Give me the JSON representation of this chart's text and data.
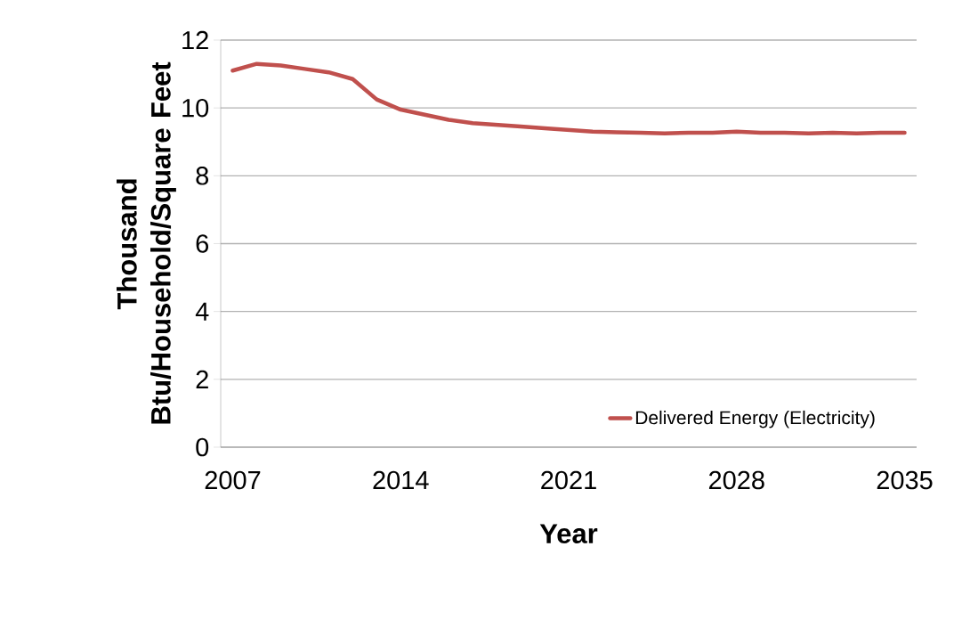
{
  "chart_data": {
    "type": "line",
    "xlabel": "Year",
    "ylabel": "Thousand Btu/Household/Square Feet",
    "categories": [
      "2007",
      null,
      null,
      null,
      null,
      null,
      null,
      "2014",
      null,
      null,
      null,
      null,
      null,
      null,
      "2021",
      null,
      null,
      null,
      null,
      null,
      null,
      "2028",
      null,
      null,
      null,
      null,
      null,
      null,
      "2035"
    ],
    "series": [
      {
        "name": "Delivered Energy (Electricity)",
        "color": "#c0504d",
        "values": [
          11.1,
          11.3,
          11.25,
          11.15,
          11.05,
          10.85,
          10.25,
          9.95,
          9.8,
          9.65,
          9.55,
          9.5,
          9.45,
          9.4,
          9.35,
          9.3,
          9.28,
          9.27,
          9.25,
          9.27,
          9.27,
          9.3,
          9.27,
          9.27,
          9.25,
          9.27,
          9.25,
          9.27,
          9.27
        ]
      }
    ],
    "ylim": [
      0,
      12
    ],
    "yticks": [
      0,
      2,
      4,
      6,
      8,
      10,
      12
    ],
    "grid": "y",
    "legend": "bottom right",
    "marker": "none",
    "line_style": "solid"
  }
}
